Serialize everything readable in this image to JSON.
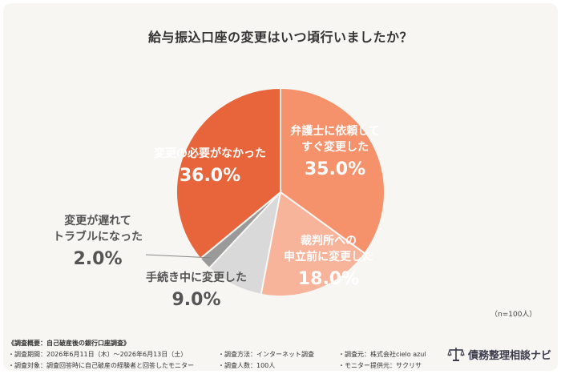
{
  "header": {
    "title": "給与振込口座の変更はいつ頃行いましたか？"
  },
  "chart_data": {
    "type": "pie",
    "title": "給与振込口座の変更はいつ頃行いましたか？",
    "slices": [
      {
        "label": "弁護士に依頼してすぐ変更した",
        "lines": [
          "弁護士に依頼して",
          "すぐ変更した"
        ],
        "value": 35.0,
        "value_label": "35.0%",
        "color": "#f5926b"
      },
      {
        "label": "裁判所への申立前に変更した",
        "lines": [
          "裁判所への",
          "申立前に変更した"
        ],
        "value": 18.0,
        "value_label": "18.0%",
        "color": "#f8b49a"
      },
      {
        "label": "手続き中に変更した",
        "lines": [
          "手続き中に変更した"
        ],
        "value": 9.0,
        "value_label": "9.0%",
        "color": "#d9d9d9"
      },
      {
        "label": "変更が遅れてトラブルになった",
        "lines": [
          "変更が遅れて",
          "トラブルになった"
        ],
        "value": 2.0,
        "value_label": "2.0%",
        "color": "#9a9a9a"
      },
      {
        "label": "変更の必要がなかった",
        "lines": [
          "変更の必要がなかった"
        ],
        "value": 36.0,
        "value_label": "36.0%",
        "color": "#e8643a"
      }
    ],
    "sample_note": "（n=100人）"
  },
  "survey": {
    "heading": "《調査概要：自己破産後の銀行口座調査》",
    "period": "・調査期間：2026年6月11日（木）～2026年6月13日（土）",
    "method": "・調査方法：インターネット調査",
    "organizer": "・調査元：株式会社cielo azul",
    "target": "・調査対象：調査回答時に自己破産の経験者と回答したモニター",
    "count": "・調査人数：100人",
    "provider": "・モニター提供元：サクリサ"
  },
  "logo": {
    "text": "債務整理相談ナビ",
    "icon": "scales-icon",
    "color": "#3a3a4a"
  }
}
